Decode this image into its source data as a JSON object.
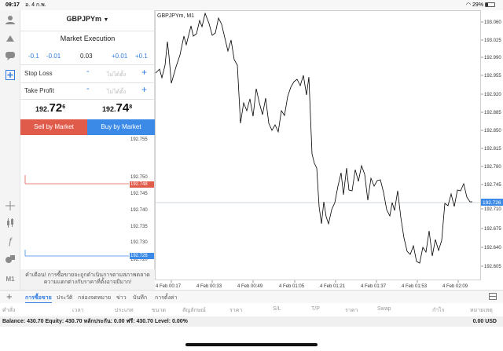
{
  "status_bar": {
    "time": "09:17",
    "date": "อ. 4 ก.พ.",
    "battery": "29%",
    "battery_level": 0.29
  },
  "order_panel": {
    "symbol": "GBPJPYm",
    "execution": "Market Execution",
    "volume_steps": [
      "-0.1",
      "-0.01",
      "+0.01",
      "+0.1"
    ],
    "volume": "0.03",
    "stop_loss_label": "Stop Loss",
    "take_profit_label": "Take Profit",
    "not_set": "ไม่ได้ตั้ง",
    "minus": "-",
    "plus": "+",
    "bid": {
      "prefix": "192.",
      "big": "72",
      "sup": "6"
    },
    "ask": {
      "prefix": "192.",
      "big": "74",
      "sup": "8"
    },
    "sell_label": "Sell by Market",
    "buy_label": "Buy by Market",
    "depth_ticks": [
      "192.755",
      "192.750",
      "192.745",
      "192.740",
      "192.735",
      "192.730",
      "192.725",
      "192.720"
    ],
    "depth_ask": "192.748",
    "depth_bid": "192.726",
    "warning": "คำเตือน! การซื้อขายจะถูกดำเนินการตามสภาพตลาด ความแตกต่างกับราคาที่ตั้งอาจมีมาก!"
  },
  "chart": {
    "title": "GBPJPYm, M1",
    "y_ticks": [
      "193.060",
      "193.025",
      "192.990",
      "192.955",
      "192.920",
      "192.885",
      "192.850",
      "192.815",
      "192.780",
      "192.745",
      "192.710",
      "192.675",
      "192.640",
      "192.605"
    ],
    "x_ticks": [
      "4 Feb 00:17",
      "4 Feb 00:33",
      "4 Feb 00:49",
      "4 Feb 01:05",
      "4 Feb 01:21",
      "4 Feb 01:37",
      "4 Feb 01:53",
      "4 Feb 02:09"
    ],
    "current_price": "192.726",
    "colors": {
      "bid": "#3c8ae8",
      "ask": "#e15b4b",
      "line": "#000000"
    }
  },
  "bottom_tabs": {
    "tabs": [
      "การซื้อขาย",
      "ประวัติ",
      "กล่องจดหมาย",
      "ข่าว",
      "บันทึก",
      "การตั้งค่า"
    ]
  },
  "columns": [
    "คำสั่ง",
    "เวลา",
    "ประเภท",
    "ขนาด",
    "สัญลักษณ์",
    "ราคา",
    "S/L",
    "T/P",
    "ราคา",
    "Swap",
    "กำไร",
    "หมายเหตุ"
  ],
  "balance": {
    "text": "Balance: 430.70  Equity: 430.70  หลักประกัน: 0.00  ฟรี: 430.70  Level: 0.00%",
    "total": "0.00  USD"
  }
}
